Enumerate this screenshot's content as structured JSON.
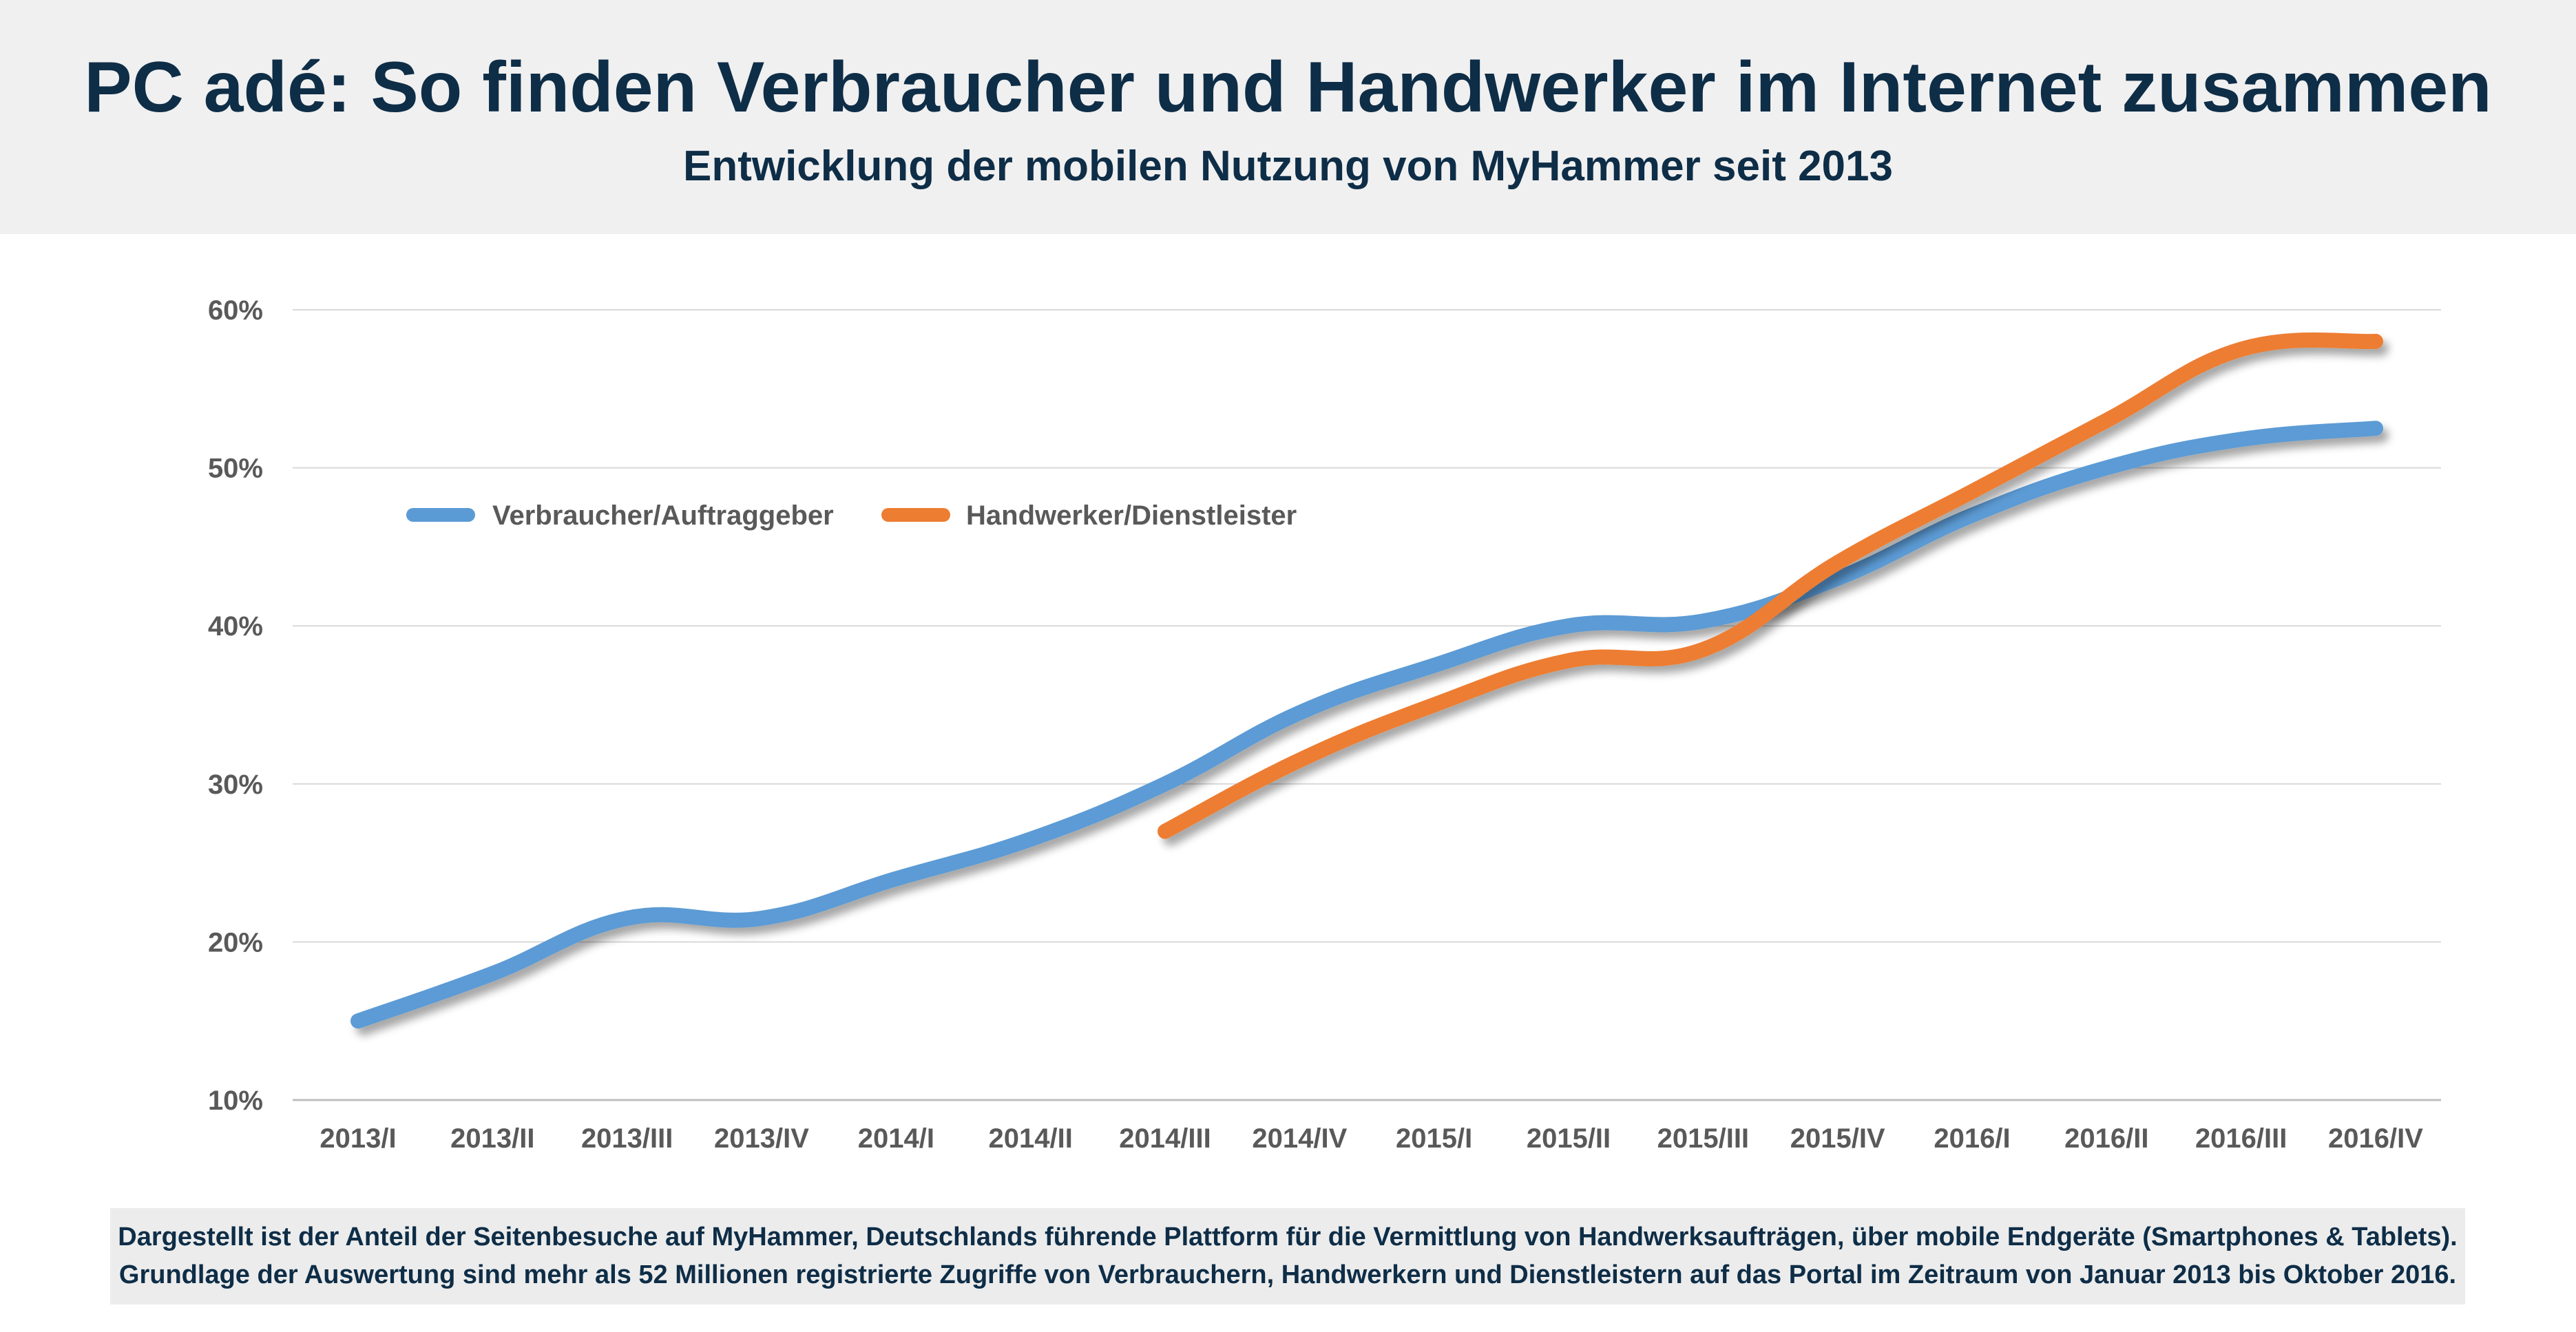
{
  "header": {
    "title": "PC adé: So finden Verbraucher und Handwerker im Internet zusammen",
    "subtitle": "Entwicklung der mobilen Nutzung von MyHammer seit 2013"
  },
  "chart_data": {
    "type": "line",
    "title": "PC adé: So finden Verbraucher und Handwerker im Internet zusammen",
    "subtitle": "Entwicklung der mobilen Nutzung von MyHammer seit 2013",
    "xlabel": "",
    "ylabel": "",
    "categories": [
      "2013/I",
      "2013/II",
      "2013/III",
      "2013/IV",
      "2014/I",
      "2014/II",
      "2014/III",
      "2014/IV",
      "2015/I",
      "2015/II",
      "2015/III",
      "2015/IV",
      "2016/I",
      "2016/II",
      "2016/III",
      "2016/IV"
    ],
    "y_ticks": [
      10,
      20,
      30,
      40,
      50,
      60
    ],
    "y_tick_labels": [
      "10%",
      "20%",
      "30%",
      "40%",
      "50%",
      "60%"
    ],
    "ylim": [
      10,
      60
    ],
    "grid": true,
    "legend_position": "top-left",
    "series": [
      {
        "name": "Verbraucher/Auftraggeber",
        "color": "#5b9bd5",
        "values": [
          15,
          18,
          21.5,
          21.5,
          24,
          26.5,
          30,
          34.5,
          37.5,
          40,
          40.3,
          43,
          47,
          50,
          51.8,
          52.5
        ]
      },
      {
        "name": "Handwerker/Dienstleister",
        "color": "#ed7d31",
        "values": [
          null,
          null,
          null,
          null,
          null,
          null,
          27,
          31.5,
          35,
          37.8,
          38.5,
          44,
          48.5,
          53,
          57.5,
          58
        ]
      }
    ]
  },
  "footer": {
    "line1": "Dargestellt ist der Anteil der Seitenbesuche auf MyHammer, Deutschlands führende Plattform für die Vermittlung von Handwerksaufträgen, über mobile Endgeräte (Smartphones & Tablets).",
    "line2": "Grundlage der Auswertung sind mehr als 52 Millionen registrierte Zugriffe von Verbrauchern, Handwerkern und Dienstleistern auf das Portal im Zeitraum von Januar 2013 bis Oktober 2016."
  }
}
